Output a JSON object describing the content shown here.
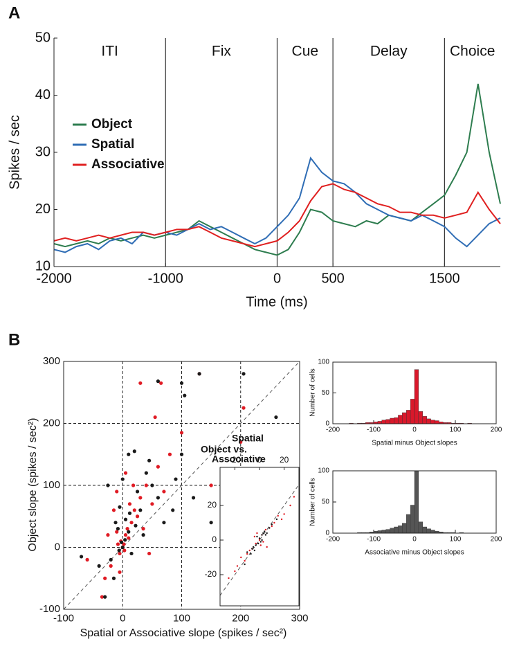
{
  "panel_labels": [
    "A",
    "B"
  ],
  "chart_data": [
    {
      "type": "line",
      "xlabel": "Time (ms)",
      "ylabel": "Spikes / sec",
      "xlim": [
        -2000,
        2000
      ],
      "ylim": [
        10,
        50
      ],
      "xticks": [
        -2000,
        -1000,
        0,
        500,
        1500
      ],
      "yticks": [
        10,
        20,
        30,
        40,
        50
      ],
      "grid": false,
      "legend": "upper left",
      "epochs": [
        {
          "label": "ITI",
          "start": -2000,
          "end": -1000
        },
        {
          "label": "Fix",
          "start": -1000,
          "end": 0
        },
        {
          "label": "Cue",
          "start": 0,
          "end": 500
        },
        {
          "label": "Delay",
          "start": 500,
          "end": 1500
        },
        {
          "label": "Choice",
          "start": 1500,
          "end": 2000
        }
      ],
      "x": [
        -2000,
        -1900,
        -1800,
        -1700,
        -1600,
        -1500,
        -1400,
        -1300,
        -1200,
        -1100,
        -1000,
        -900,
        -800,
        -700,
        -600,
        -500,
        -400,
        -300,
        -200,
        -100,
        0,
        100,
        200,
        300,
        400,
        500,
        600,
        700,
        800,
        900,
        1000,
        1100,
        1200,
        1300,
        1400,
        1500,
        1600,
        1700,
        1800,
        1900,
        2000
      ],
      "series": [
        {
          "name": "Object",
          "color": "#2e7d4f",
          "values": [
            14,
            13.5,
            14,
            14.5,
            14,
            15,
            14.5,
            15,
            15.5,
            15,
            15.5,
            16,
            16.5,
            18,
            17,
            16,
            15,
            14,
            13,
            12.5,
            12,
            13,
            16,
            20,
            19.5,
            18,
            17.5,
            17,
            18,
            17.5,
            19,
            18.5,
            18,
            19.5,
            21,
            22.5,
            26,
            30,
            42,
            30,
            21
          ]
        },
        {
          "name": "Spatial",
          "color": "#2f6db5",
          "values": [
            13,
            12.5,
            13.5,
            14,
            13,
            14.5,
            15,
            14,
            16,
            15.5,
            16,
            15.5,
            16.5,
            17.5,
            16.5,
            17,
            16,
            15,
            14,
            15,
            17,
            19,
            22,
            29,
            26.5,
            25,
            24.5,
            23,
            21,
            20,
            19,
            18.5,
            18,
            19,
            18,
            17,
            15,
            13.5,
            15.5,
            17.5,
            18.5
          ]
        },
        {
          "name": "Associative",
          "color": "#e02020",
          "values": [
            14.5,
            15,
            14.5,
            15,
            15.5,
            15,
            15.5,
            16,
            16,
            15.5,
            16,
            16.5,
            16.5,
            17,
            16,
            15,
            14.5,
            14,
            13.5,
            14,
            14.5,
            16,
            18,
            21.5,
            24,
            24.5,
            23.5,
            23,
            22,
            21,
            20.5,
            19.5,
            19.5,
            19,
            19,
            18.5,
            19,
            19.5,
            23,
            20,
            17.5
          ]
        }
      ]
    },
    {
      "type": "scatter",
      "xlabel": "Spatial or Associative slope (spikes / sec²)",
      "ylabel": "Object slope (spikes / sec²)",
      "xlim": [
        -100,
        300
      ],
      "ylim": [
        -100,
        300
      ],
      "xticks": [
        -100,
        0,
        100,
        200,
        300
      ],
      "yticks": [
        -100,
        0,
        100,
        200,
        300
      ],
      "grid": true,
      "diagonal": true,
      "legend_title": "Object vs.",
      "series": [
        {
          "name": "Spatial",
          "color": "#e01b24",
          "x": [
            0,
            2,
            -3,
            5,
            -5,
            8,
            10,
            -8,
            3,
            15,
            20,
            25,
            -10,
            30,
            40,
            50,
            60,
            -20,
            -30,
            -60,
            -35,
            70,
            80,
            -15,
            5,
            55,
            65,
            30,
            100,
            130,
            150,
            200,
            205,
            -10,
            12,
            35,
            45,
            -5,
            18,
            -25
          ],
          "y": [
            0,
            5,
            10,
            20,
            -10,
            30,
            15,
            5,
            -5,
            40,
            60,
            50,
            25,
            80,
            100,
            70,
            130,
            -30,
            -50,
            -20,
            -80,
            90,
            150,
            60,
            120,
            210,
            265,
            265,
            185,
            280,
            100,
            170,
            225,
            90,
            70,
            30,
            -10,
            -40,
            100,
            20
          ]
        },
        {
          "name": "Associative",
          "color": "#1a1a1a",
          "x": [
            0,
            -2,
            4,
            -6,
            10,
            12,
            22,
            -12,
            30,
            40,
            60,
            70,
            -20,
            -40,
            -70,
            -30,
            90,
            100,
            105,
            100,
            60,
            10,
            0,
            -5,
            20,
            85,
            120,
            150,
            -15,
            25,
            5,
            -25,
            130,
            205,
            260,
            45,
            35,
            15,
            50,
            -8
          ],
          "y": [
            0,
            8,
            12,
            -5,
            25,
            55,
            35,
            40,
            60,
            120,
            80,
            40,
            -20,
            -30,
            -15,
            -80,
            110,
            150,
            245,
            265,
            268,
            150,
            110,
            65,
            155,
            60,
            80,
            40,
            -50,
            90,
            45,
            100,
            280,
            280,
            210,
            140,
            20,
            -10,
            100,
            30
          ]
        }
      ]
    },
    {
      "type": "histogram",
      "xlabel": "Spatial minus Object slopes",
      "ylabel": "Number of cells",
      "color": "#d9182b",
      "xlim": [
        -200,
        200
      ],
      "ylim": [
        0,
        100
      ],
      "xticks": [
        -200,
        -100,
        0,
        100,
        200
      ],
      "yticks": [
        0,
        50,
        100
      ],
      "bins": [
        -200,
        -190,
        -180,
        -170,
        -160,
        -150,
        -140,
        -130,
        -120,
        -110,
        -100,
        -90,
        -80,
        -70,
        -60,
        -50,
        -40,
        -30,
        -20,
        -10,
        0,
        10,
        20,
        30,
        40,
        50,
        60,
        70,
        80,
        90,
        100,
        110,
        120,
        130,
        140,
        150,
        160,
        170,
        180,
        190,
        200
      ],
      "counts": [
        0,
        0,
        0,
        0,
        1,
        0,
        1,
        1,
        2,
        2,
        3,
        4,
        6,
        7,
        9,
        10,
        14,
        18,
        22,
        40,
        88,
        20,
        12,
        8,
        6,
        5,
        3,
        2,
        2,
        1,
        1,
        1,
        0,
        1,
        0,
        0,
        0,
        0,
        0,
        0
      ]
    },
    {
      "type": "histogram",
      "xlabel": "Associative minus Object slopes",
      "ylabel": "Number of cells",
      "color": "#555555",
      "xlim": [
        -200,
        200
      ],
      "ylim": [
        0,
        100
      ],
      "xticks": [
        -200,
        -100,
        0,
        100,
        200
      ],
      "yticks": [
        0,
        50,
        100
      ],
      "bins": [
        -200,
        -190,
        -180,
        -170,
        -160,
        -150,
        -140,
        -130,
        -120,
        -110,
        -100,
        -90,
        -80,
        -70,
        -60,
        -50,
        -40,
        -30,
        -20,
        -10,
        0,
        10,
        20,
        30,
        40,
        50,
        60,
        70,
        80,
        90,
        100,
        110,
        120,
        130,
        140,
        150,
        160,
        170,
        180,
        190,
        200
      ],
      "counts": [
        0,
        0,
        0,
        0,
        0,
        0,
        1,
        1,
        1,
        2,
        3,
        4,
        5,
        6,
        8,
        10,
        12,
        16,
        30,
        45,
        100,
        18,
        10,
        7,
        5,
        3,
        2,
        1,
        1,
        1,
        0,
        1,
        0,
        0,
        0,
        0,
        0,
        0,
        0,
        0
      ]
    },
    {
      "type": "scatter",
      "xlim": [
        -32,
        32
      ],
      "ylim": [
        -38,
        42
      ],
      "xticks": [
        -20,
        0,
        20
      ],
      "yticks": [
        -20,
        0,
        20
      ],
      "grid": false,
      "diagonal": true,
      "series": [
        {
          "name": "Spatial",
          "color": "#e01b24",
          "x": [
            0,
            2,
            -3,
            5,
            -6,
            8,
            -10,
            12,
            -12,
            15,
            -15,
            20,
            -20,
            25,
            3,
            -4,
            6,
            -8,
            10,
            -2,
            1,
            18,
            -18,
            28,
            -25
          ],
          "y": [
            0,
            3,
            -2,
            6,
            -5,
            7,
            -8,
            10,
            -12,
            14,
            -10,
            15,
            -18,
            20,
            -1,
            2,
            -4,
            -6,
            8,
            4,
            -3,
            12,
            -15,
            25,
            -22
          ]
        },
        {
          "name": "Associative",
          "color": "#1a1a1a",
          "x": [
            0,
            -1,
            2,
            -3,
            4,
            -5,
            6,
            -7,
            8,
            1,
            -2,
            3,
            -4,
            5,
            -6,
            10,
            -10,
            14,
            -12,
            2
          ],
          "y": [
            1,
            -2,
            3,
            -3,
            5,
            -4,
            4,
            -8,
            7,
            -1,
            2,
            4,
            -6,
            3,
            -5,
            9,
            -7,
            12,
            -14,
            0
          ]
        }
      ]
    }
  ]
}
